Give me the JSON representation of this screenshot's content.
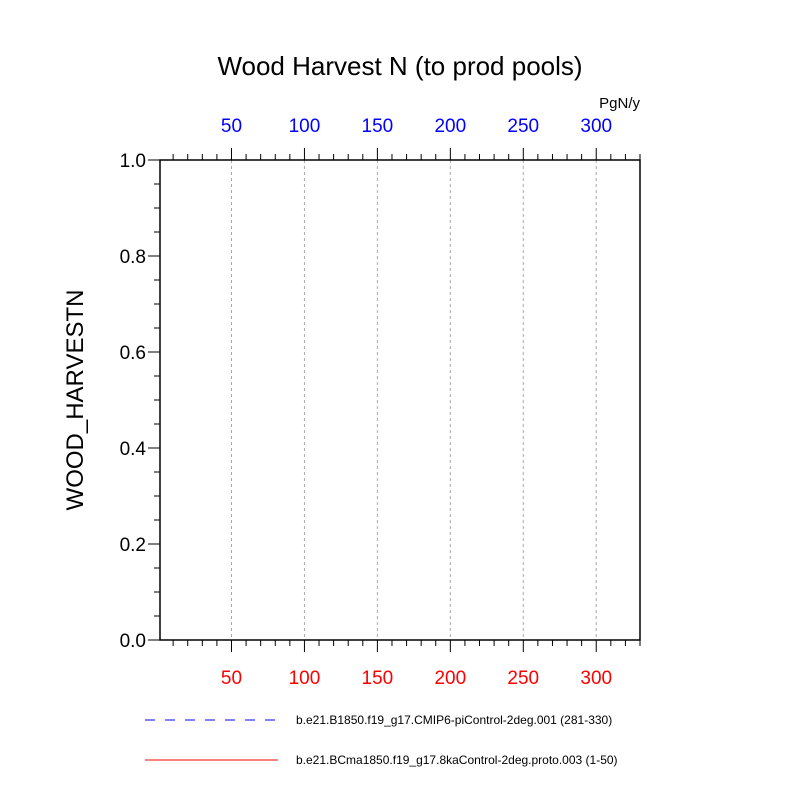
{
  "chart_data": {
    "type": "line",
    "title": "Wood Harvest N (to prod pools)",
    "units": "PgN/y",
    "xlabel": "",
    "ylabel": "WOOD_HARVESTN",
    "xlim": [
      1,
      330
    ],
    "ylim": [
      0,
      1
    ],
    "grid": "vertical dashed at major x ticks",
    "x_bottom_ticks": [
      50,
      100,
      150,
      200,
      250,
      300
    ],
    "x_bottom_color": "#ff0000",
    "x_top_ticks": [
      50,
      100,
      150,
      200,
      250,
      300
    ],
    "x_top_color": "#0000ff",
    "y_ticks": [
      "0.0",
      "0.2",
      "0.4",
      "0.6",
      "0.8",
      "1.0"
    ],
    "series": [
      {
        "name": "b.e21.B1850.f19_g17.CMIP6-piControl-2deg.001 (281-330)",
        "color": "#0000ff",
        "style": "dashed",
        "axis": "top",
        "x": [
          1,
          50
        ],
        "y": [
          0,
          0
        ]
      },
      {
        "name": "b.e21.BCma1850.f19_g17.8kaControl-2deg.proto.003 (1-50)",
        "color": "#ff0000",
        "style": "solid",
        "axis": "bottom",
        "x": [
          1,
          50
        ],
        "y": [
          0,
          0
        ]
      }
    ],
    "legend": "bottom"
  }
}
